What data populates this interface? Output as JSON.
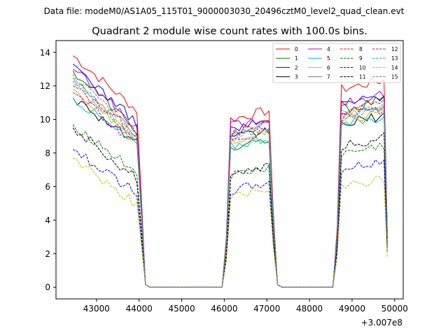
{
  "figure": {
    "suptitle": "Data file: modeM0/AS1A05_115T01_9000003030_20496cztM0_level2_quad_clean.evt"
  },
  "chart_data": {
    "type": "line",
    "title": "Quadrant 2 module wise count rates with 100.0s bins.",
    "xlabel": "",
    "ylabel": "",
    "x_offset_label": "+3.007e8",
    "xlim": [
      42050,
      50200
    ],
    "ylim": [
      -0.7,
      14.7
    ],
    "xticks": [
      43000,
      44000,
      45000,
      46000,
      47000,
      48000,
      49000,
      50000
    ],
    "xtick_labels": [
      "43000",
      "44000",
      "45000",
      "46000",
      "47000",
      "48000",
      "49000",
      "50000"
    ],
    "yticks": [
      0,
      2,
      4,
      6,
      8,
      10,
      12,
      14
    ],
    "ytick_labels": [
      "0",
      "2",
      "4",
      "6",
      "8",
      "10",
      "12",
      "14"
    ],
    "legend_position": "upper-right",
    "legend_columns": 4,
    "segments": [
      {
        "start": 42450,
        "n": 16
      },
      {
        "start": 46150,
        "n": 10
      },
      {
        "start": 48750,
        "n": 11
      }
    ],
    "bin_width": 100,
    "series": [
      {
        "name": "0",
        "color": "#ff0000",
        "dash": "solid",
        "seg_levels": [
          12.4,
          10.0,
          11.8
        ],
        "first_value": 13.8
      },
      {
        "name": "1",
        "color": "#008000",
        "dash": "solid",
        "seg_levels": [
          11.0,
          8.2,
          10.6
        ],
        "first_value": 12.9
      },
      {
        "name": "2",
        "color": "#0000ff",
        "dash": "solid",
        "seg_levels": [
          11.5,
          9.4,
          10.9
        ],
        "first_value": 13.3
      },
      {
        "name": "3",
        "color": "#000000",
        "dash": "solid",
        "seg_levels": [
          10.1,
          8.8,
          9.7
        ],
        "first_value": 11.3
      },
      {
        "name": "4",
        "color": "#bf00bf",
        "dash": "solid",
        "seg_levels": [
          11.2,
          9.6,
          11.0
        ],
        "first_value": 13.0
      },
      {
        "name": "5",
        "color": "#00bfbf",
        "dash": "solid",
        "seg_levels": [
          9.9,
          8.4,
          9.6
        ],
        "first_value": 11.3
      },
      {
        "name": "6",
        "color": "#bfbf00",
        "dash": "solid",
        "seg_levels": [
          10.2,
          8.6,
          9.9
        ],
        "first_value": 11.8
      },
      {
        "name": "7",
        "color": "#808080",
        "dash": "solid",
        "seg_levels": [
          10.6,
          9.2,
          10.4
        ],
        "first_value": 12.5
      },
      {
        "name": "8",
        "color": "#ff0000",
        "dash": "dashed",
        "seg_levels": [
          10.7,
          9.2,
          10.5
        ],
        "first_value": 12.0
      },
      {
        "name": "9",
        "color": "#008000",
        "dash": "dashed",
        "seg_levels": [
          8.0,
          6.6,
          7.9
        ],
        "first_value": 9.7
      },
      {
        "name": "10",
        "color": "#0000ff",
        "dash": "dashed",
        "seg_levels": [
          6.6,
          5.7,
          7.0
        ],
        "first_value": 8.2
      },
      {
        "name": "11",
        "color": "#000000",
        "dash": "dashed",
        "seg_levels": [
          7.6,
          6.8,
          8.4
        ],
        "first_value": 9.5
      },
      {
        "name": "12",
        "color": "#bf00bf",
        "dash": "dashed",
        "seg_levels": [
          10.0,
          8.8,
          10.1
        ],
        "first_value": 11.6
      },
      {
        "name": "13",
        "color": "#00bfbf",
        "dash": "dashed",
        "seg_levels": [
          10.4,
          9.0,
          10.3
        ],
        "first_value": 12.3
      },
      {
        "name": "14",
        "color": "#bfbf00",
        "dash": "dashed",
        "seg_levels": [
          5.8,
          5.3,
          5.9
        ],
        "first_value": 7.7
      },
      {
        "name": "15",
        "color": "#808080",
        "dash": "dashed",
        "seg_levels": [
          10.3,
          8.9,
          10.2
        ],
        "first_value": 12.7
      }
    ]
  }
}
